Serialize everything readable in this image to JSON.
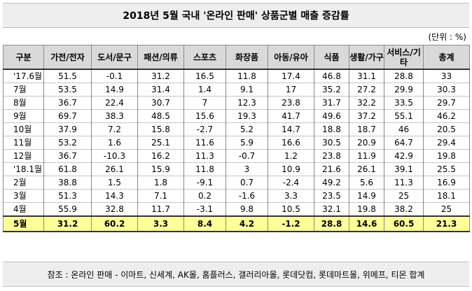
{
  "title": "2018년 5월 국내 '온라인 판매' 상품군별 매출 증감률",
  "unit": "(단위 : %)",
  "headers": [
    "구분",
    "가전/전자",
    "도서/문구",
    "패션/의류",
    "스포츠",
    "화장품",
    "아동/유아",
    "식품",
    "생활/가구",
    "서비스/기타",
    "총계"
  ],
  "rows": [
    [
      "'17.6월",
      "51.5",
      "-0.1",
      "31.2",
      "16.5",
      "11.8",
      "17.4",
      "46.8",
      "31.1",
      "28.8",
      "33"
    ],
    [
      "7월",
      "53.5",
      "14.9",
      "31.4",
      "1.4",
      "9.1",
      "17",
      "35.2",
      "27.2",
      "29.9",
      "30.3"
    ],
    [
      "8월",
      "36.7",
      "22.4",
      "30.7",
      "7",
      "12.3",
      "23.8",
      "31.7",
      "32.2",
      "33.5",
      "29.7"
    ],
    [
      "9월",
      "69.7",
      "38.3",
      "48.5",
      "15.6",
      "19.3",
      "41.7",
      "49.6",
      "37.2",
      "55.1",
      "46.2"
    ],
    [
      "10월",
      "37.9",
      "7.2",
      "15.8",
      "-2.7",
      "5.2",
      "14.7",
      "18.8",
      "18.7",
      "46",
      "20.5"
    ],
    [
      "11월",
      "53.2",
      "1.6",
      "25.1",
      "11.6",
      "5.9",
      "16.6",
      "30.5",
      "20.9",
      "64.7",
      "29.4"
    ],
    [
      "12월",
      "36.7",
      "-10.3",
      "16.2",
      "11.3",
      "-0.7",
      "1.2",
      "23.8",
      "11.9",
      "42.9",
      "19.8"
    ],
    [
      "'18.1월",
      "61.8",
      "26.1",
      "15.9",
      "11.8",
      "3",
      "10.9",
      "21.6",
      "26.1",
      "39.1",
      "25.5"
    ],
    [
      "2월",
      "38.8",
      "1.5",
      "1.8",
      "-9.1",
      "0.7",
      "-2.4",
      "49.2",
      "5.6",
      "11.3",
      "16.9"
    ],
    [
      "3월",
      "51.3",
      "14.3",
      "7.1",
      "0.2",
      "-1.6",
      "3.3",
      "23.5",
      "14.9",
      "25",
      "18.1"
    ],
    [
      "4월",
      "55.9",
      "32.8",
      "11.7",
      "-3.1",
      "9.8",
      "10.5",
      "32.1",
      "19.8",
      "38.2",
      "25"
    ],
    [
      "5월",
      "31.2",
      "60.2",
      "3.3",
      "8.4",
      "4.2",
      "-1.2",
      "28.8",
      "14.6",
      "60.5",
      "21.3"
    ]
  ],
  "footer": "참조 : 온라인 판매 - 이마트, 신세계, AK몰, 홈플러스, 갤러리아몰, 롯데닷컴, 롯데마트몰, 위메프, 티몬 합계"
}
